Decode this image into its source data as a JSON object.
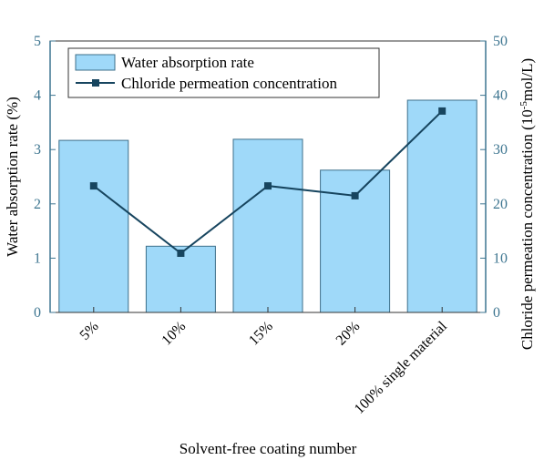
{
  "colors": {
    "bar_fill": "#9fd9f9",
    "bar_stroke": "#3d6f8a",
    "line": "#17455f",
    "left_axis": "#3d7590",
    "right_axis": "#3d7590",
    "axis": "#333333"
  },
  "chart_data": {
    "type": "bar+line",
    "categories": [
      "5%",
      "10%",
      "15%",
      "20%",
      "100% single material"
    ],
    "xlabel": "Solvent-free coating number",
    "ylabel_left": "Water absorption rate (%)",
    "ylabel_right": {
      "prefix": "Chloride permeation concentration (10",
      "sup": "-5",
      "suffix": "mol/L)"
    },
    "y_left": {
      "range": [
        0,
        5
      ],
      "ticks": [
        "0",
        "1",
        "2",
        "3",
        "4",
        "5"
      ]
    },
    "y_right": {
      "range": [
        0,
        50
      ],
      "ticks": [
        "0",
        "10",
        "20",
        "30",
        "40",
        "50"
      ]
    },
    "series": [
      {
        "name": "Water absorption rate",
        "type": "bar",
        "axis": "left",
        "values": [
          3.17,
          1.22,
          3.19,
          2.62,
          3.91
        ]
      },
      {
        "name": "Chloride permeation concentration",
        "type": "line",
        "marker": "square",
        "axis": "right",
        "values": [
          23.3,
          10.9,
          23.3,
          21.5,
          37.1
        ]
      }
    ],
    "legend": {
      "position": "top-left"
    },
    "grid": false
  }
}
